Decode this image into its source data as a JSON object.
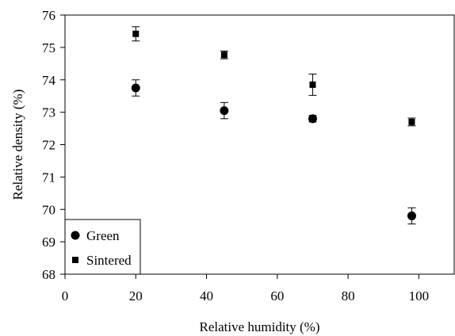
{
  "chart_data": {
    "type": "scatter",
    "title": "",
    "xlabel": "Relative humidity (%)",
    "ylabel": "Relative density (%)",
    "xlim": [
      0,
      110
    ],
    "ylim": [
      68,
      76
    ],
    "xticks": [
      0,
      20,
      40,
      60,
      80,
      100
    ],
    "yticks": [
      68,
      69,
      70,
      71,
      72,
      73,
      74,
      75,
      76
    ],
    "grid": false,
    "legend_position": "bottom-left",
    "series": [
      {
        "name": "Green",
        "marker": "circle",
        "x": [
          20,
          45,
          70,
          98
        ],
        "y": [
          73.75,
          73.05,
          72.8,
          69.8
        ],
        "error": [
          0.25,
          0.25,
          0.1,
          0.25
        ]
      },
      {
        "name": "Sintered",
        "marker": "square",
        "x": [
          20,
          45,
          70,
          98
        ],
        "y": [
          75.42,
          74.77,
          73.85,
          72.7
        ],
        "error": [
          0.22,
          0.12,
          0.33,
          0.12
        ]
      }
    ]
  }
}
